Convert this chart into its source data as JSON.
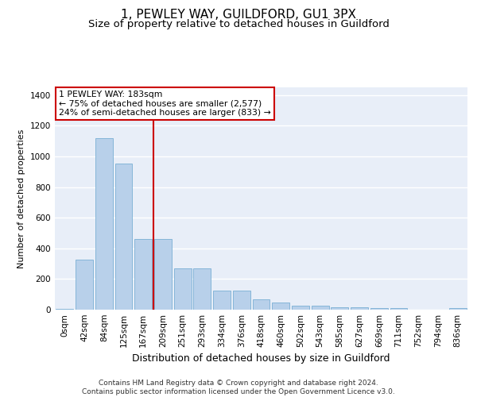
{
  "title": "1, PEWLEY WAY, GUILDFORD, GU1 3PX",
  "subtitle": "Size of property relative to detached houses in Guildford",
  "xlabel": "Distribution of detached houses by size in Guildford",
  "ylabel": "Number of detached properties",
  "categories": [
    "0sqm",
    "42sqm",
    "84sqm",
    "125sqm",
    "167sqm",
    "209sqm",
    "251sqm",
    "293sqm",
    "334sqm",
    "376sqm",
    "418sqm",
    "460sqm",
    "502sqm",
    "543sqm",
    "585sqm",
    "627sqm",
    "669sqm",
    "711sqm",
    "752sqm",
    "794sqm",
    "836sqm"
  ],
  "values": [
    5,
    325,
    1120,
    955,
    462,
    462,
    268,
    268,
    125,
    125,
    68,
    45,
    27,
    27,
    18,
    18,
    9,
    9,
    2,
    2,
    9
  ],
  "bar_color": "#b8d0ea",
  "bar_edgecolor": "#7aafd4",
  "vline_x_index": 4,
  "vline_color": "#cc0000",
  "annotation_text": "1 PEWLEY WAY: 183sqm\n← 75% of detached houses are smaller (2,577)\n24% of semi-detached houses are larger (833) →",
  "annotation_box_facecolor": "#ffffff",
  "annotation_box_edgecolor": "#cc0000",
  "footer": "Contains HM Land Registry data © Crown copyright and database right 2024.\nContains public sector information licensed under the Open Government Licence v3.0.",
  "ylim": [
    0,
    1450
  ],
  "yticks": [
    0,
    200,
    400,
    600,
    800,
    1000,
    1200,
    1400
  ],
  "background_color": "#e8eef8",
  "grid_color": "#ffffff",
  "title_fontsize": 11,
  "subtitle_fontsize": 9.5,
  "xlabel_fontsize": 9,
  "ylabel_fontsize": 8,
  "tick_fontsize": 7.5,
  "annotation_fontsize": 7.8,
  "footer_fontsize": 6.5
}
